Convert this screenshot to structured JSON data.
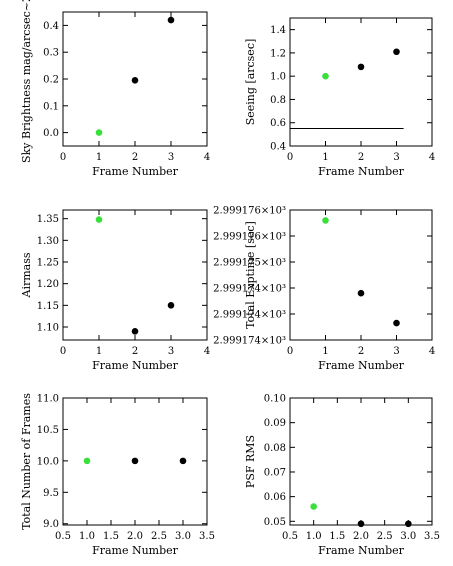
{
  "chart_data": [
    {
      "type": "scatter",
      "xlabel": "Frame Number",
      "ylabel": "Sky Brightness mag/arcsec~2",
      "xlim": [
        0,
        4
      ],
      "ylim": [
        -0.05,
        0.45
      ],
      "xticks": [
        "0",
        "1",
        "2",
        "3",
        "4"
      ],
      "yticks": [
        "0.0",
        "0.1",
        "0.2",
        "0.3",
        "0.4"
      ],
      "ytick_values": [
        0.0,
        0.1,
        0.2,
        0.3,
        0.4
      ],
      "xtick_values": [
        0,
        1,
        2,
        3,
        4
      ],
      "points": [
        {
          "x": 1,
          "y": 0.0,
          "color": "#3ae03a"
        },
        {
          "x": 2,
          "y": 0.195,
          "color": "#000000"
        },
        {
          "x": 3,
          "y": 0.42,
          "color": "#000000"
        }
      ]
    },
    {
      "type": "scatter",
      "xlabel": "Frame Number",
      "ylabel": "Seeing [arcsec]",
      "xlim": [
        0,
        4
      ],
      "ylim": [
        0.4,
        1.5
      ],
      "xticks": [
        "0",
        "1",
        "2",
        "3",
        "4"
      ],
      "yticks": [
        "0.4",
        "0.6",
        "0.8",
        "1.0",
        "1.2",
        "1.4"
      ],
      "ytick_values": [
        0.4,
        0.6,
        0.8,
        1.0,
        1.2,
        1.4
      ],
      "xtick_values": [
        0,
        1,
        2,
        3,
        4
      ],
      "points": [
        {
          "x": 1,
          "y": 1.0,
          "color": "#3ae03a"
        },
        {
          "x": 2,
          "y": 1.08,
          "color": "#000000"
        },
        {
          "x": 3,
          "y": 1.21,
          "color": "#000000"
        }
      ],
      "hline": {
        "y": 0.55,
        "x_from": 0,
        "x_to": 3.2
      }
    },
    {
      "type": "scatter",
      "xlabel": "Frame Number",
      "ylabel": "Airmass",
      "xlim": [
        0,
        4
      ],
      "ylim": [
        1.07,
        1.37
      ],
      "xticks": [
        "0",
        "1",
        "2",
        "3",
        "4"
      ],
      "yticks": [
        "1.10",
        "1.15",
        "1.20",
        "1.25",
        "1.30",
        "1.35"
      ],
      "ytick_values": [
        1.1,
        1.15,
        1.2,
        1.25,
        1.3,
        1.35
      ],
      "xtick_values": [
        0,
        1,
        2,
        3,
        4
      ],
      "points": [
        {
          "x": 1,
          "y": 1.348,
          "color": "#3ae03a"
        },
        {
          "x": 2,
          "y": 1.09,
          "color": "#000000"
        },
        {
          "x": 3,
          "y": 1.15,
          "color": "#000000"
        }
      ]
    },
    {
      "type": "scatter",
      "xlabel": "Frame Number",
      "ylabel": "Total Exptime [sec]",
      "xlim": [
        0,
        4
      ],
      "ylim": [
        0,
        5
      ],
      "xticks": [
        "0",
        "1",
        "2",
        "3",
        "4"
      ],
      "yticks": [
        "2.999174×10³",
        "2.999174×10³",
        "2.999174×10³",
        "2.999175×10³",
        "2.999176×10³",
        "2.999176×10³"
      ],
      "ytick_values": [
        0,
        1,
        2,
        3,
        4,
        5
      ],
      "xtick_values": [
        0,
        1,
        2,
        3,
        4
      ],
      "points": [
        {
          "x": 1,
          "y": 4.6,
          "color": "#3ae03a"
        },
        {
          "x": 2,
          "y": 1.8,
          "color": "#000000"
        },
        {
          "x": 3,
          "y": 0.65,
          "color": "#000000"
        }
      ]
    },
    {
      "type": "scatter",
      "xlabel": "Frame Number",
      "ylabel": "Total Number of Frames",
      "xlim": [
        0.5,
        3.5
      ],
      "ylim": [
        8.98,
        11.0
      ],
      "xticks": [
        "0.5",
        "1.0",
        "1.5",
        "2.0",
        "2.5",
        "3.0",
        "3.5"
      ],
      "yticks": [
        "9.0",
        "9.5",
        "10.0",
        "10.5",
        "11.0"
      ],
      "ytick_values": [
        9.0,
        9.5,
        10.0,
        10.5,
        11.0
      ],
      "xtick_values": [
        0.5,
        1.0,
        1.5,
        2.0,
        2.5,
        3.0,
        3.5
      ],
      "points": [
        {
          "x": 1,
          "y": 10.0,
          "color": "#3ae03a"
        },
        {
          "x": 2,
          "y": 10.0,
          "color": "#000000"
        },
        {
          "x": 3,
          "y": 10.0,
          "color": "#000000"
        }
      ]
    },
    {
      "type": "scatter",
      "xlabel": "Frame Number",
      "ylabel": "PSF RMS",
      "xlim": [
        0.5,
        3.5
      ],
      "ylim": [
        0.0485,
        0.1
      ],
      "xticks": [
        "0.5",
        "1.0",
        "1.5",
        "2.0",
        "2.5",
        "3.0",
        "3.5"
      ],
      "yticks": [
        "0.05",
        "0.06",
        "0.07",
        "0.08",
        "0.09",
        "0.10"
      ],
      "ytick_values": [
        0.05,
        0.06,
        0.07,
        0.08,
        0.09,
        0.1
      ],
      "xtick_values": [
        0.5,
        1.0,
        1.5,
        2.0,
        2.5,
        3.0,
        3.5
      ],
      "points": [
        {
          "x": 1,
          "y": 0.056,
          "color": "#3ae03a"
        },
        {
          "x": 2,
          "y": 0.049,
          "color": "#000000"
        },
        {
          "x": 3,
          "y": 0.049,
          "color": "#000000"
        }
      ]
    }
  ]
}
